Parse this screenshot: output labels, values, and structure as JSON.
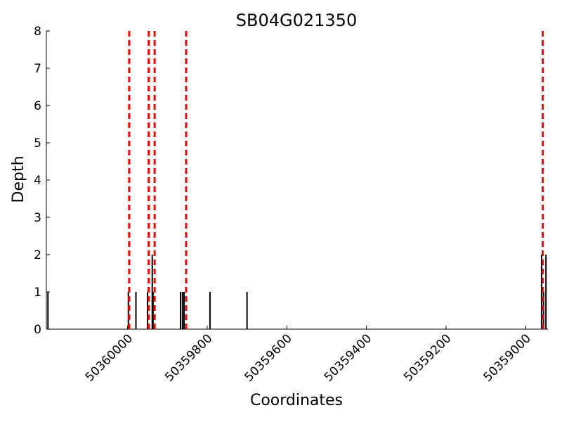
{
  "chart_data": {
    "type": "bar",
    "title": "SB04G021350",
    "xlabel": "Coordinates",
    "ylabel": "Depth",
    "x_reversed": true,
    "xlim": [
      50360204,
      50358944
    ],
    "ylim": [
      0,
      8
    ],
    "x_ticks": [
      "50360000",
      "50359800",
      "50359600",
      "50359400",
      "50359200",
      "50359000"
    ],
    "y_ticks": [
      "0",
      "1",
      "2",
      "3",
      "4",
      "5",
      "6",
      "7",
      "8"
    ],
    "grid": false,
    "bar_color": "#000000",
    "marker_color": "#ff0000",
    "depth_bars": [
      {
        "x": 50360200,
        "depth": 1
      },
      {
        "x": 50359998,
        "depth": 1
      },
      {
        "x": 50359979,
        "depth": 1
      },
      {
        "x": 50359950,
        "depth": 1
      },
      {
        "x": 50359938,
        "depth": 2
      },
      {
        "x": 50359936,
        "depth": 1
      },
      {
        "x": 50359867,
        "depth": 1
      },
      {
        "x": 50359862,
        "depth": 1
      },
      {
        "x": 50359858,
        "depth": 1
      },
      {
        "x": 50359793,
        "depth": 1
      },
      {
        "x": 50359700,
        "depth": 1
      },
      {
        "x": 50358960,
        "depth": 2
      },
      {
        "x": 50358955,
        "depth": 1
      },
      {
        "x": 50358949,
        "depth": 2
      }
    ],
    "dashed_markers": [
      50359996,
      50359947,
      50359932,
      50359853,
      50358957
    ]
  }
}
